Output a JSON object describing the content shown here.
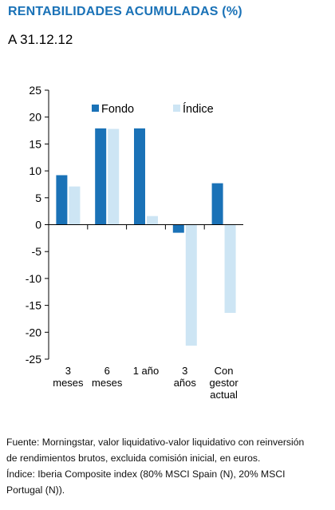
{
  "header": {
    "title": "RENTABILIDADES ACUMULADAS (%)",
    "subtitle": "A 31.12.12"
  },
  "chart_data": {
    "type": "bar",
    "categories": [
      [
        "3",
        "meses"
      ],
      [
        "6",
        "meses"
      ],
      [
        "1 año"
      ],
      [
        "3",
        "años"
      ],
      [
        "Con",
        "gestor",
        "actual"
      ]
    ],
    "series": [
      {
        "name": "Fondo",
        "color": "#1a72b7",
        "values": [
          9.2,
          17.9,
          17.9,
          -1.5,
          7.7
        ]
      },
      {
        "name": "Índice",
        "color": "#cde5f4",
        "values": [
          7.1,
          17.8,
          1.6,
          -22.5,
          -16.4
        ]
      }
    ],
    "ylim": [
      -25,
      25
    ],
    "yticks": [
      25,
      20,
      15,
      10,
      5,
      0,
      -5,
      -10,
      -15,
      -20,
      -25
    ],
    "legend": "top-right",
    "grid": false
  },
  "footnote": {
    "lines": [
      "Fuente: Morningstar, valor liquidativo-valor liquidativo con reinversión",
      "de rendimientos brutos, excluida comisión inicial, en euros.",
      "Índice: Iberia Composite index (80% MSCI Spain (N), 20% MSCI",
      "Portugal (N))."
    ]
  }
}
